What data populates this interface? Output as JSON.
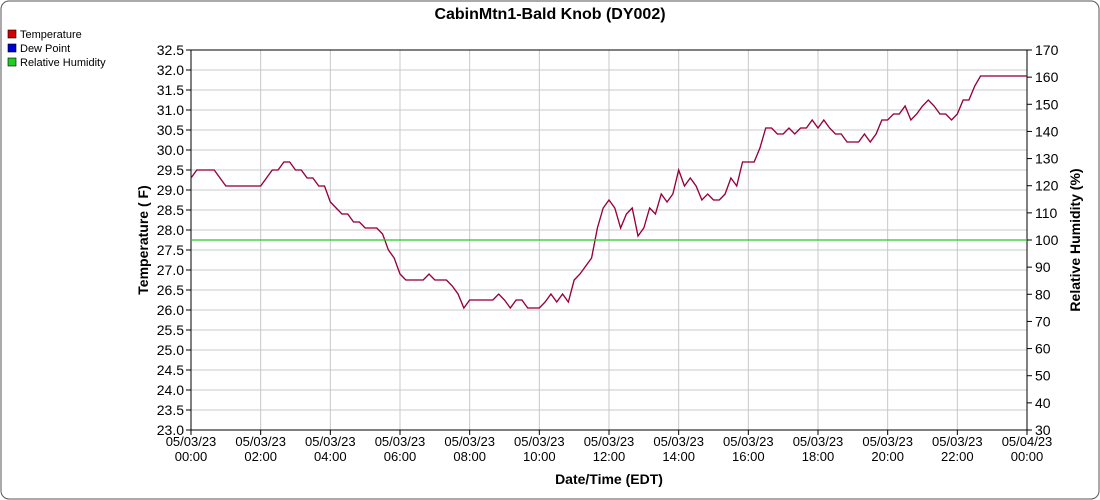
{
  "chart_data": {
    "type": "line",
    "title": "CabinMtn1-Bald Knob (DY002)",
    "x_label": "Date/Time (EDT)",
    "y_label": "Temperature ( F)",
    "y2_label": "Relative Humidity (%)",
    "xlim": [
      0,
      1440
    ],
    "xticks": [
      {
        "value": 0,
        "label": "05/03/23 00:00"
      },
      {
        "value": 120,
        "label": "05/03/23 02:00"
      },
      {
        "value": 240,
        "label": "05/03/23 04:00"
      },
      {
        "value": 360,
        "label": "05/03/23 06:00"
      },
      {
        "value": 480,
        "label": "05/03/23 08:00"
      },
      {
        "value": 600,
        "label": "05/03/23 10:00"
      },
      {
        "value": 720,
        "label": "05/03/23 12:00"
      },
      {
        "value": 840,
        "label": "05/03/23 14:00"
      },
      {
        "value": 960,
        "label": "05/03/23 16:00"
      },
      {
        "value": 1080,
        "label": "05/03/23 18:00"
      },
      {
        "value": 1200,
        "label": "05/03/23 20:00"
      },
      {
        "value": 1320,
        "label": "05/03/23 22:00"
      },
      {
        "value": 1440,
        "label": "05/04/23 00:00"
      }
    ],
    "ylim": [
      23,
      32.5
    ],
    "yticks": [
      {
        "value": 23,
        "label": "23.0"
      },
      23.5,
      {
        "value": 24,
        "label": "24.0"
      },
      24.5,
      {
        "value": 25,
        "label": "25.0"
      },
      25.5,
      {
        "value": 26,
        "label": "26.0"
      },
      26.5,
      {
        "value": 27,
        "label": "27.0"
      },
      27.5,
      {
        "value": 28,
        "label": "28.0"
      },
      28.5,
      {
        "value": 29,
        "label": "29.0"
      },
      29.5,
      {
        "value": 30,
        "label": "30.0"
      },
      30.5,
      {
        "value": 31,
        "label": "31.0"
      },
      31.5,
      {
        "value": 32,
        "label": "32.0"
      },
      32.5
    ],
    "y2lim": [
      30,
      170
    ],
    "y2ticks": [
      30,
      40,
      50,
      60,
      70,
      80,
      90,
      100,
      110,
      120,
      130,
      140,
      150,
      160,
      170
    ],
    "grid": true,
    "legend": "top-left",
    "series": [
      {
        "name": "Temperature",
        "color": "#d40000",
        "x": [
          0,
          10,
          40,
          60,
          120,
          130,
          140,
          150,
          160,
          170,
          180,
          190,
          200,
          210,
          220,
          230,
          240,
          250,
          260,
          270,
          280,
          290,
          300,
          320,
          330,
          340,
          350,
          360,
          370,
          400,
          410,
          420,
          440,
          450,
          460,
          470,
          480,
          510,
          520,
          530,
          540,
          550,
          560,
          570,
          580,
          600,
          610,
          620,
          630,
          640,
          650,
          660,
          670,
          680,
          690,
          700,
          710,
          720,
          730,
          740,
          750,
          760,
          770,
          780,
          790,
          800,
          810,
          820,
          830,
          840,
          850,
          860,
          870,
          880,
          890,
          900,
          910,
          920,
          930,
          940,
          950,
          970,
          980,
          990,
          1000,
          1010,
          1020,
          1030,
          1040,
          1050,
          1060,
          1070,
          1080,
          1090,
          1100,
          1110,
          1120,
          1130,
          1150,
          1160,
          1170,
          1180,
          1190,
          1200,
          1210,
          1220,
          1230,
          1240,
          1250,
          1260,
          1270,
          1280,
          1290,
          1300,
          1310,
          1320,
          1330,
          1340,
          1350,
          1360,
          1440
        ],
        "values": [
          29.3,
          29.5,
          29.5,
          29.1,
          29.1,
          29.3,
          29.5,
          29.5,
          29.7,
          29.7,
          29.5,
          29.5,
          29.3,
          29.3,
          29.1,
          29.1,
          28.7,
          28.55,
          28.4,
          28.4,
          28.2,
          28.2,
          28.05,
          28.05,
          27.9,
          27.5,
          27.3,
          26.9,
          26.75,
          26.75,
          26.9,
          26.75,
          26.75,
          26.6,
          26.4,
          26.05,
          26.25,
          26.25,
          26.25,
          26.4,
          26.25,
          26.05,
          26.25,
          26.25,
          26.05,
          26.05,
          26.2,
          26.4,
          26.2,
          26.4,
          26.2,
          26.75,
          26.9,
          27.1,
          27.3,
          28.05,
          28.55,
          28.75,
          28.55,
          28.05,
          28.4,
          28.55,
          27.85,
          28.05,
          28.55,
          28.4,
          28.9,
          28.7,
          28.9,
          29.5,
          29.1,
          29.3,
          29.1,
          28.75,
          28.9,
          28.75,
          28.75,
          28.9,
          29.3,
          29.1,
          29.7,
          29.7,
          30.05,
          30.55,
          30.55,
          30.4,
          30.4,
          30.55,
          30.4,
          30.55,
          30.55,
          30.75,
          30.55,
          30.75,
          30.55,
          30.4,
          30.4,
          30.2,
          30.2,
          30.4,
          30.2,
          30.4,
          30.75,
          30.75,
          30.9,
          30.9,
          31.1,
          30.75,
          30.9,
          31.1,
          31.25,
          31.1,
          30.9,
          30.9,
          30.75,
          30.9,
          31.25,
          31.25,
          31.6,
          31.85,
          31.85
        ]
      },
      {
        "name": "Dew Point",
        "color": "#0000d4",
        "x": [
          0,
          10,
          40,
          60,
          120,
          130,
          140,
          150,
          160,
          170,
          180,
          190,
          200,
          210,
          220,
          230,
          240,
          250,
          260,
          270,
          280,
          290,
          300,
          320,
          330,
          340,
          350,
          360,
          370,
          400,
          410,
          420,
          440,
          450,
          460,
          470,
          480,
          510,
          520,
          530,
          540,
          550,
          560,
          570,
          580,
          600,
          610,
          620,
          630,
          640,
          650,
          660,
          670,
          680,
          690,
          700,
          710,
          720,
          730,
          740,
          750,
          760,
          770,
          780,
          790,
          800,
          810,
          820,
          830,
          840,
          850,
          860,
          870,
          880,
          890,
          900,
          910,
          920,
          930,
          940,
          950,
          970,
          980,
          990,
          1000,
          1010,
          1020,
          1030,
          1040,
          1050,
          1060,
          1070,
          1080,
          1090,
          1100,
          1110,
          1120,
          1130,
          1150,
          1160,
          1170,
          1180,
          1190,
          1200,
          1210,
          1220,
          1230,
          1240,
          1250,
          1260,
          1270,
          1280,
          1290,
          1300,
          1310,
          1320,
          1330,
          1340,
          1350,
          1360,
          1440
        ],
        "values": [
          29.3,
          29.5,
          29.5,
          29.1,
          29.1,
          29.3,
          29.5,
          29.5,
          29.7,
          29.7,
          29.5,
          29.5,
          29.3,
          29.3,
          29.1,
          29.1,
          28.7,
          28.55,
          28.4,
          28.4,
          28.2,
          28.2,
          28.05,
          28.05,
          27.9,
          27.5,
          27.3,
          26.9,
          26.75,
          26.75,
          26.9,
          26.75,
          26.75,
          26.6,
          26.4,
          26.05,
          26.25,
          26.25,
          26.25,
          26.4,
          26.25,
          26.05,
          26.25,
          26.25,
          26.05,
          26.05,
          26.2,
          26.4,
          26.2,
          26.4,
          26.2,
          26.75,
          26.9,
          27.1,
          27.3,
          28.05,
          28.55,
          28.75,
          28.55,
          28.05,
          28.4,
          28.55,
          27.85,
          28.05,
          28.55,
          28.4,
          28.9,
          28.7,
          28.9,
          29.5,
          29.1,
          29.3,
          29.1,
          28.75,
          28.9,
          28.75,
          28.75,
          28.9,
          29.3,
          29.1,
          29.7,
          29.7,
          30.05,
          30.55,
          30.55,
          30.4,
          30.4,
          30.55,
          30.4,
          30.55,
          30.55,
          30.75,
          30.55,
          30.75,
          30.55,
          30.4,
          30.4,
          30.2,
          30.2,
          30.4,
          30.2,
          30.4,
          30.75,
          30.75,
          30.9,
          30.9,
          31.1,
          30.75,
          30.9,
          31.1,
          31.25,
          31.1,
          30.9,
          30.9,
          30.75,
          30.9,
          31.25,
          31.25,
          31.6,
          31.85,
          31.85
        ]
      },
      {
        "name": "Relative Humidity",
        "color": "#22cc22",
        "axis": "y2",
        "x": [
          0,
          1440
        ],
        "values": [
          100,
          100
        ]
      }
    ]
  }
}
